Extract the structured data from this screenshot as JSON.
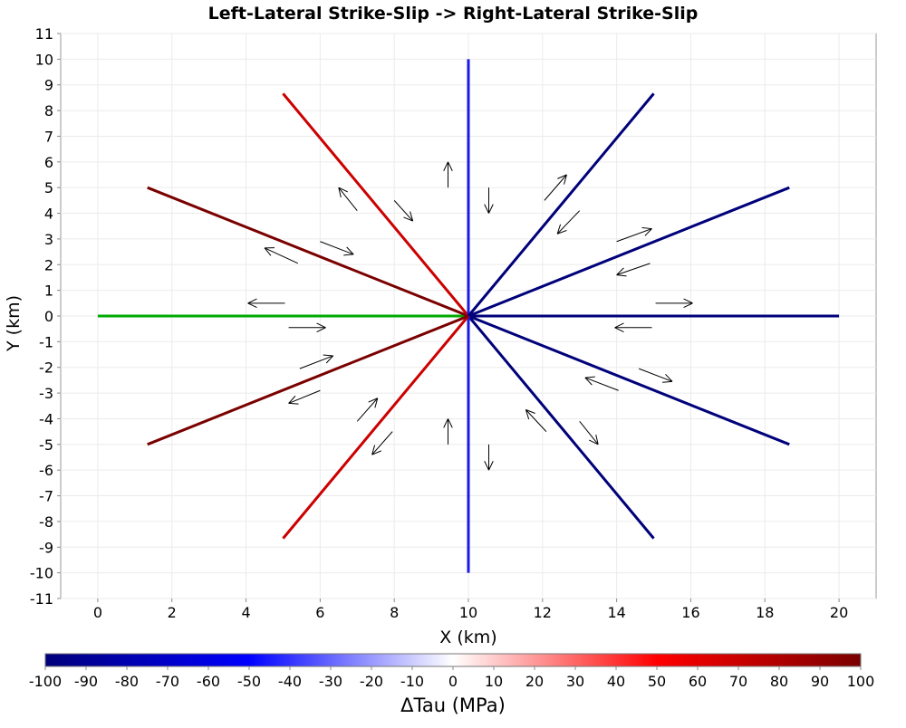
{
  "chart_data": {
    "type": "line",
    "title": "Left-Lateral Strike-Slip -> Right-Lateral Strike-Slip",
    "xlabel": "X (km)",
    "ylabel": "Y (km)",
    "xlim": [
      -1,
      21
    ],
    "ylim": [
      -11,
      11
    ],
    "xticks": [
      0,
      2,
      4,
      6,
      8,
      10,
      12,
      14,
      16,
      18,
      20
    ],
    "yticks": [
      -11,
      -10,
      -9,
      -8,
      -7,
      -6,
      -5,
      -4,
      -3,
      -2,
      -1,
      0,
      1,
      2,
      3,
      4,
      5,
      6,
      7,
      8,
      9,
      10,
      11
    ],
    "grid": true,
    "fault_segments": [
      {
        "x": [
          10,
          0
        ],
        "y": [
          0,
          0
        ],
        "delta_tau": 0,
        "color": "#00aa00"
      },
      {
        "x": [
          10,
          1.34
        ],
        "y": [
          0,
          5
        ],
        "delta_tau": 85,
        "color": "#7a0000"
      },
      {
        "x": [
          10,
          5
        ],
        "y": [
          0,
          8.66
        ],
        "delta_tau": 50,
        "color": "#cc0000"
      },
      {
        "x": [
          10,
          10
        ],
        "y": [
          0,
          10
        ],
        "delta_tau": -50,
        "color": "#1a1ae6"
      },
      {
        "x": [
          10,
          15
        ],
        "y": [
          0,
          8.66
        ],
        "delta_tau": -90,
        "color": "#00007a"
      },
      {
        "x": [
          10,
          18.66
        ],
        "y": [
          0,
          5
        ],
        "delta_tau": -90,
        "color": "#00007a"
      },
      {
        "x": [
          10,
          20
        ],
        "y": [
          0,
          0
        ],
        "delta_tau": -90,
        "color": "#00007a"
      },
      {
        "x": [
          10,
          18.66
        ],
        "y": [
          0,
          -5
        ],
        "delta_tau": -90,
        "color": "#00007a"
      },
      {
        "x": [
          10,
          15
        ],
        "y": [
          0,
          -8.66
        ],
        "delta_tau": -90,
        "color": "#00007a"
      },
      {
        "x": [
          10,
          10
        ],
        "y": [
          0,
          -10
        ],
        "delta_tau": -50,
        "color": "#1a1ae6"
      },
      {
        "x": [
          10,
          5
        ],
        "y": [
          0,
          -8.66
        ],
        "delta_tau": 50,
        "color": "#cc0000"
      },
      {
        "x": [
          10,
          1.34
        ],
        "y": [
          0,
          -5
        ],
        "delta_tau": 85,
        "color": "#7a0000"
      }
    ],
    "slip_arrows": [
      {
        "x1": 5.05,
        "y1": 0.5,
        "x2": 4.05,
        "y2": 0.5
      },
      {
        "x1": 5.15,
        "y1": -0.45,
        "x2": 6.15,
        "y2": -0.45
      },
      {
        "x1": 5.4,
        "y1": 2.05,
        "x2": 4.5,
        "y2": 2.65
      },
      {
        "x1": 6.0,
        "y1": 2.9,
        "x2": 6.9,
        "y2": 2.4
      },
      {
        "x1": 7.0,
        "y1": 4.1,
        "x2": 6.5,
        "y2": 5.0
      },
      {
        "x1": 8.0,
        "y1": 4.5,
        "x2": 8.5,
        "y2": 3.7
      },
      {
        "x1": 9.45,
        "y1": 5.0,
        "x2": 9.45,
        "y2": 6.0
      },
      {
        "x1": 10.55,
        "y1": 5.0,
        "x2": 10.55,
        "y2": 4.0
      },
      {
        "x1": 12.05,
        "y1": 4.5,
        "x2": 12.65,
        "y2": 5.5
      },
      {
        "x1": 13.0,
        "y1": 4.1,
        "x2": 12.4,
        "y2": 3.2
      },
      {
        "x1": 14.0,
        "y1": 2.9,
        "x2": 14.95,
        "y2": 3.4
      },
      {
        "x1": 14.9,
        "y1": 2.05,
        "x2": 14.0,
        "y2": 1.6
      },
      {
        "x1": 15.05,
        "y1": 0.5,
        "x2": 16.05,
        "y2": 0.5
      },
      {
        "x1": 14.95,
        "y1": -0.45,
        "x2": 13.95,
        "y2": -0.45
      },
      {
        "x1": 14.6,
        "y1": -2.05,
        "x2": 15.5,
        "y2": -2.55
      },
      {
        "x1": 14.05,
        "y1": -2.9,
        "x2": 13.15,
        "y2": -2.4
      },
      {
        "x1": 13.0,
        "y1": -4.1,
        "x2": 13.5,
        "y2": -5.0
      },
      {
        "x1": 12.1,
        "y1": -4.5,
        "x2": 11.55,
        "y2": -3.65
      },
      {
        "x1": 10.55,
        "y1": -5.0,
        "x2": 10.55,
        "y2": -6.0
      },
      {
        "x1": 9.45,
        "y1": -5.0,
        "x2": 9.45,
        "y2": -4.0
      },
      {
        "x1": 7.95,
        "y1": -4.5,
        "x2": 7.4,
        "y2": -5.4
      },
      {
        "x1": 7.0,
        "y1": -4.1,
        "x2": 7.55,
        "y2": -3.2
      },
      {
        "x1": 6.0,
        "y1": -2.9,
        "x2": 5.15,
        "y2": -3.4
      },
      {
        "x1": 5.45,
        "y1": -2.05,
        "x2": 6.35,
        "y2": -1.55
      }
    ],
    "colorbar": {
      "label": "ΔTau (MPa)",
      "min": -100,
      "max": 100,
      "ticks": [
        -100,
        -90,
        -80,
        -70,
        -60,
        -50,
        -40,
        -30,
        -20,
        -10,
        0,
        10,
        20,
        30,
        40,
        50,
        60,
        70,
        80,
        90,
        100
      ],
      "colormap": [
        [
          -100,
          "#00007a"
        ],
        [
          -50,
          "#0000ff"
        ],
        [
          0,
          "#ffffff"
        ],
        [
          50,
          "#ff0000"
        ],
        [
          100,
          "#7a0000"
        ]
      ]
    }
  }
}
